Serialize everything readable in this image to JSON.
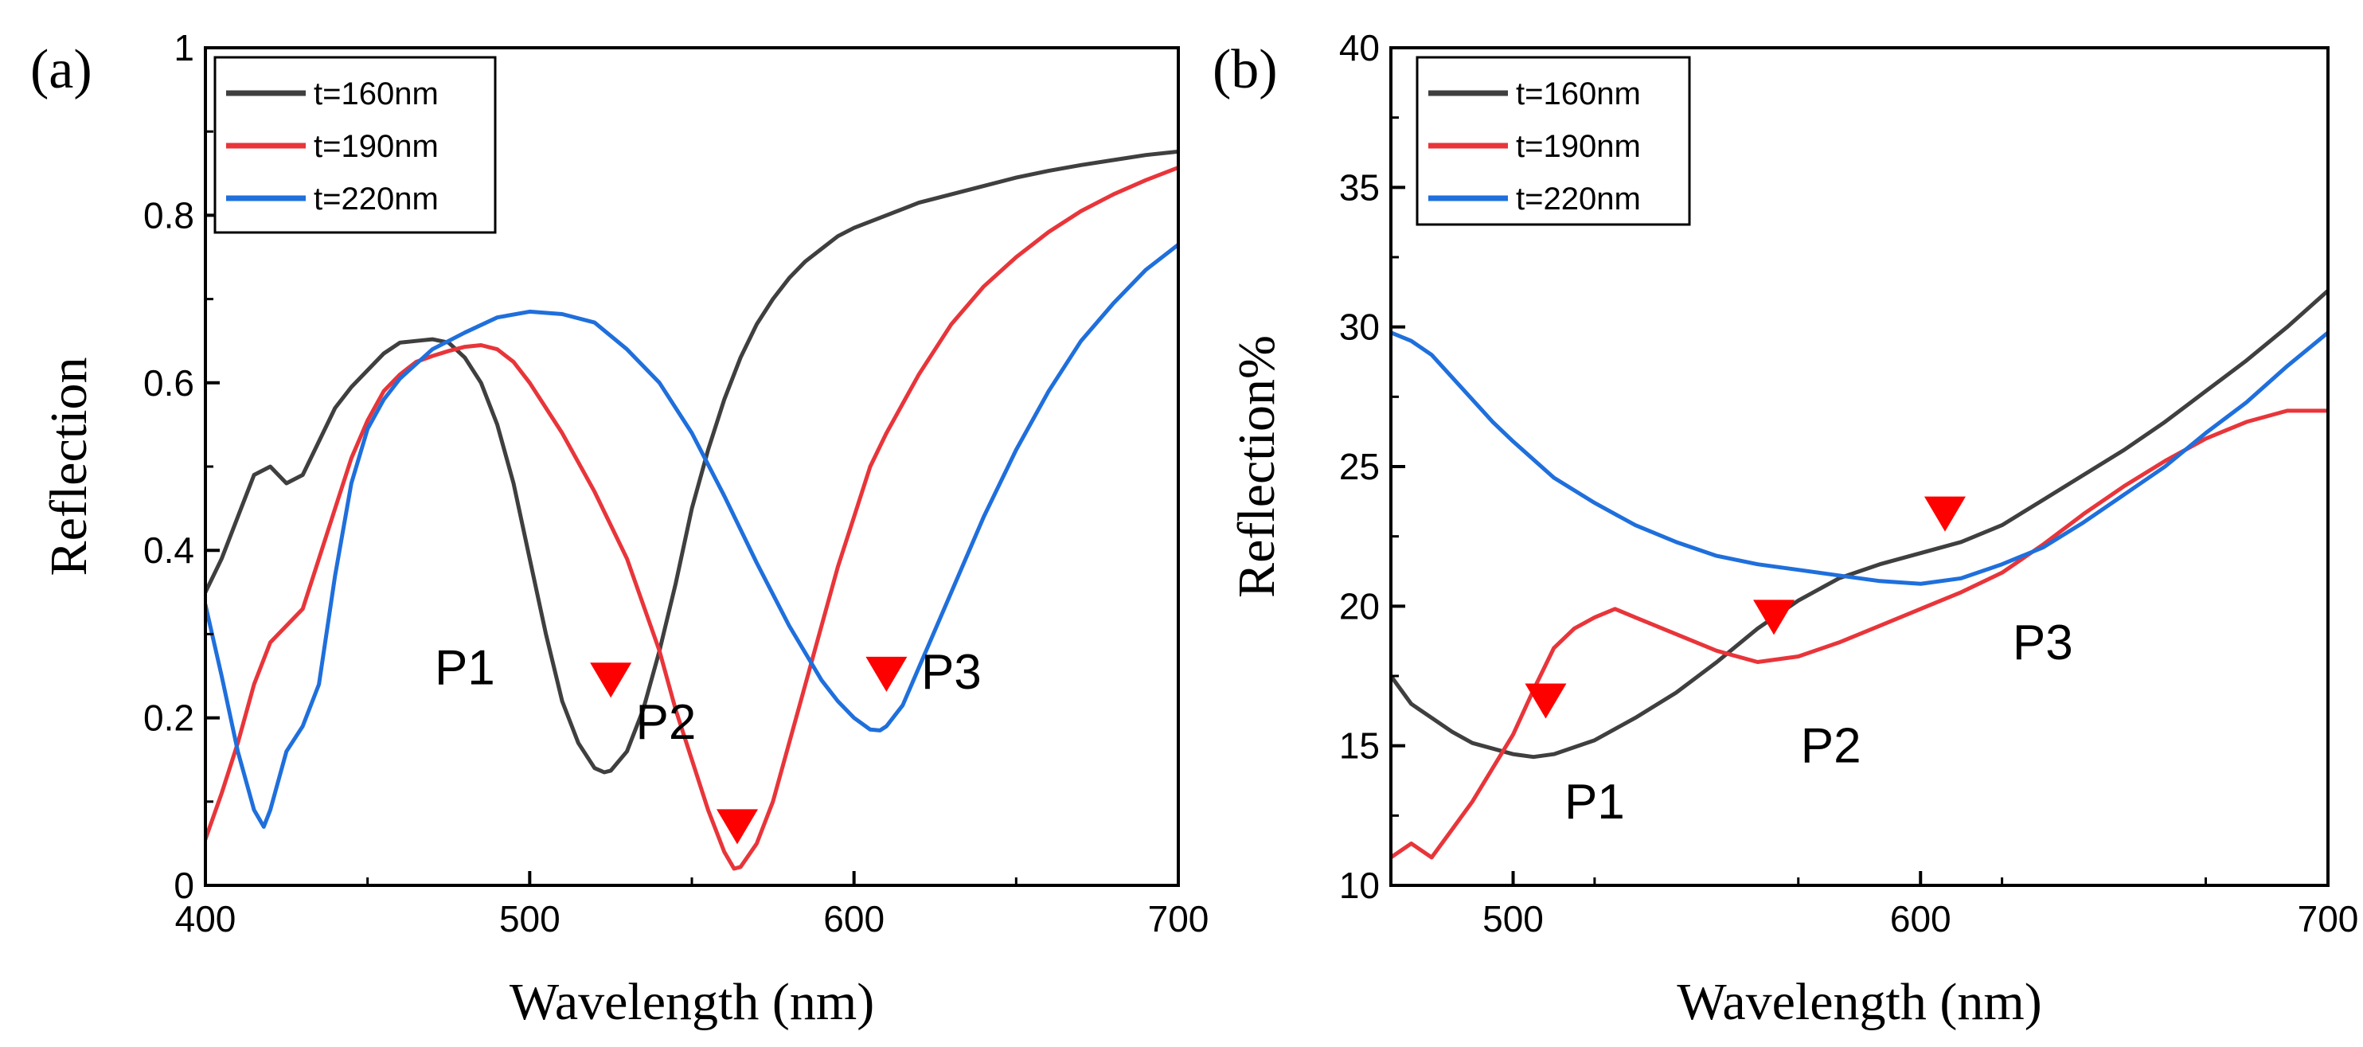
{
  "colors": {
    "t160": "#3f3f3f",
    "t190": "#e8353a",
    "t220": "#1f6fdc",
    "marker": "#ff0000",
    "axis": "#000000"
  },
  "chart_data": [
    {
      "panel_label": "(a)",
      "type": "line",
      "title": "",
      "xlabel": "Wavelength (nm)",
      "ylabel": "Reflection",
      "xlim": [
        400,
        700
      ],
      "ylim": [
        0,
        1
      ],
      "xticks": [
        400,
        500,
        600,
        700
      ],
      "xtick_labels": [
        "400",
        "500",
        "600",
        "700"
      ],
      "yticks": [
        0,
        0.2,
        0.4,
        0.6,
        0.8,
        1
      ],
      "ytick_labels": [
        "0",
        "0.2",
        "0.4",
        "0.6",
        "0.8",
        "1"
      ],
      "legend_position": "top-left",
      "series": [
        {
          "name": "t=160nm",
          "x": [
            400,
            405,
            410,
            415,
            420,
            425,
            430,
            435,
            440,
            445,
            450,
            455,
            460,
            465,
            470,
            475,
            480,
            485,
            490,
            495,
            500,
            505,
            510,
            515,
            520,
            523,
            525,
            530,
            535,
            540,
            545,
            550,
            555,
            560,
            565,
            570,
            575,
            580,
            585,
            590,
            595,
            600,
            610,
            620,
            630,
            640,
            650,
            660,
            670,
            680,
            690,
            700
          ],
          "y": [
            0.35,
            0.39,
            0.44,
            0.49,
            0.5,
            0.48,
            0.49,
            0.53,
            0.57,
            0.595,
            0.615,
            0.635,
            0.648,
            0.65,
            0.652,
            0.648,
            0.63,
            0.6,
            0.55,
            0.48,
            0.39,
            0.3,
            0.22,
            0.17,
            0.14,
            0.135,
            0.137,
            0.16,
            0.21,
            0.28,
            0.36,
            0.45,
            0.52,
            0.58,
            0.63,
            0.67,
            0.7,
            0.725,
            0.745,
            0.76,
            0.775,
            0.785,
            0.8,
            0.815,
            0.825,
            0.835,
            0.845,
            0.853,
            0.86,
            0.866,
            0.872,
            0.876
          ]
        },
        {
          "name": "t=190nm",
          "x": [
            400,
            405,
            410,
            415,
            420,
            425,
            430,
            435,
            440,
            445,
            450,
            455,
            460,
            465,
            470,
            475,
            480,
            485,
            490,
            495,
            500,
            510,
            520,
            530,
            540,
            545,
            550,
            555,
            560,
            563,
            565,
            570,
            575,
            580,
            585,
            590,
            595,
            600,
            605,
            610,
            620,
            630,
            640,
            650,
            660,
            670,
            680,
            690,
            700
          ],
          "y": [
            0.055,
            0.11,
            0.17,
            0.24,
            0.29,
            0.31,
            0.33,
            0.39,
            0.45,
            0.51,
            0.555,
            0.59,
            0.61,
            0.625,
            0.632,
            0.638,
            0.643,
            0.645,
            0.64,
            0.625,
            0.6,
            0.54,
            0.47,
            0.39,
            0.28,
            0.21,
            0.15,
            0.09,
            0.04,
            0.02,
            0.022,
            0.05,
            0.1,
            0.17,
            0.24,
            0.31,
            0.38,
            0.44,
            0.5,
            0.54,
            0.61,
            0.67,
            0.715,
            0.75,
            0.78,
            0.805,
            0.825,
            0.842,
            0.857
          ]
        },
        {
          "name": "t=220nm",
          "x": [
            400,
            405,
            410,
            415,
            418,
            420,
            425,
            430,
            435,
            440,
            445,
            450,
            455,
            460,
            470,
            480,
            490,
            500,
            510,
            520,
            530,
            540,
            550,
            560,
            570,
            580,
            590,
            595,
            600,
            605,
            608,
            610,
            615,
            620,
            630,
            640,
            650,
            660,
            670,
            680,
            690,
            700
          ],
          "y": [
            0.335,
            0.25,
            0.16,
            0.09,
            0.07,
            0.09,
            0.16,
            0.19,
            0.24,
            0.37,
            0.48,
            0.545,
            0.58,
            0.605,
            0.64,
            0.66,
            0.678,
            0.685,
            0.682,
            0.672,
            0.64,
            0.6,
            0.54,
            0.465,
            0.385,
            0.31,
            0.245,
            0.22,
            0.2,
            0.186,
            0.185,
            0.19,
            0.215,
            0.26,
            0.35,
            0.44,
            0.52,
            0.59,
            0.65,
            0.695,
            0.735,
            0.765
          ]
        }
      ],
      "annotations": [
        {
          "text": "P1",
          "x": 480,
          "y": 0.24
        },
        {
          "text": "P2",
          "x": 542,
          "y": 0.175
        },
        {
          "text": "P3",
          "x": 630,
          "y": 0.235
        }
      ],
      "markers": [
        {
          "x": 525,
          "y": 0.245
        },
        {
          "x": 564,
          "y": 0.07
        },
        {
          "x": 610,
          "y": 0.252
        }
      ]
    },
    {
      "panel_label": "(b)",
      "type": "line",
      "title": "",
      "xlabel": "Wavelength (nm)",
      "ylabel": "Reflection%",
      "xlim": [
        470,
        700
      ],
      "ylim": [
        10,
        40
      ],
      "xticks": [
        500,
        600,
        700
      ],
      "xtick_labels": [
        "500",
        "600",
        "700"
      ],
      "yticks": [
        10,
        15,
        20,
        25,
        30,
        35,
        40
      ],
      "ytick_labels": [
        "10",
        "15",
        "20",
        "25",
        "30",
        "35",
        "40"
      ],
      "legend_position": "top-left",
      "series": [
        {
          "name": "t=160nm",
          "x": [
            470,
            475,
            480,
            485,
            490,
            495,
            500,
            505,
            510,
            520,
            530,
            540,
            550,
            560,
            570,
            580,
            590,
            600,
            610,
            620,
            630,
            640,
            650,
            660,
            670,
            680,
            690,
            700
          ],
          "y": [
            17.5,
            16.5,
            16.0,
            15.5,
            15.1,
            14.9,
            14.7,
            14.6,
            14.7,
            15.2,
            16.0,
            16.9,
            18.0,
            19.2,
            20.2,
            21.0,
            21.5,
            21.9,
            22.3,
            22.9,
            23.8,
            24.7,
            25.6,
            26.6,
            27.7,
            28.8,
            30.0,
            31.3
          ]
        },
        {
          "name": "t=190nm",
          "x": [
            470,
            475,
            480,
            485,
            490,
            495,
            500,
            505,
            510,
            515,
            520,
            525,
            530,
            540,
            550,
            560,
            570,
            580,
            590,
            600,
            610,
            620,
            630,
            640,
            650,
            660,
            670,
            680,
            690,
            700
          ],
          "y": [
            11.0,
            11.5,
            11.0,
            12.0,
            13.0,
            14.2,
            15.4,
            17.0,
            18.5,
            19.2,
            19.6,
            19.9,
            19.6,
            19.0,
            18.4,
            18.0,
            18.2,
            18.7,
            19.3,
            19.9,
            20.5,
            21.2,
            22.2,
            23.3,
            24.3,
            25.2,
            26.0,
            26.6,
            27.0,
            27.0
          ]
        },
        {
          "name": "t=220nm",
          "x": [
            470,
            475,
            480,
            485,
            490,
            495,
            500,
            510,
            520,
            530,
            540,
            550,
            560,
            570,
            580,
            590,
            600,
            610,
            620,
            630,
            640,
            650,
            660,
            670,
            680,
            690,
            700
          ],
          "y": [
            29.8,
            29.5,
            29.0,
            28.2,
            27.4,
            26.6,
            25.9,
            24.6,
            23.7,
            22.9,
            22.3,
            21.8,
            21.5,
            21.3,
            21.1,
            20.9,
            20.8,
            21.0,
            21.5,
            22.1,
            23.0,
            24.0,
            25.0,
            26.2,
            27.3,
            28.6,
            29.8
          ]
        }
      ],
      "annotations": [
        {
          "text": "P1",
          "x": 520,
          "y": 12.4
        },
        {
          "text": "P2",
          "x": 578,
          "y": 14.4
        },
        {
          "text": "P3",
          "x": 630,
          "y": 18.1
        }
      ],
      "markers": [
        {
          "x": 508,
          "y": 16.6
        },
        {
          "x": 564,
          "y": 19.6
        },
        {
          "x": 606,
          "y": 23.3
        }
      ]
    }
  ]
}
